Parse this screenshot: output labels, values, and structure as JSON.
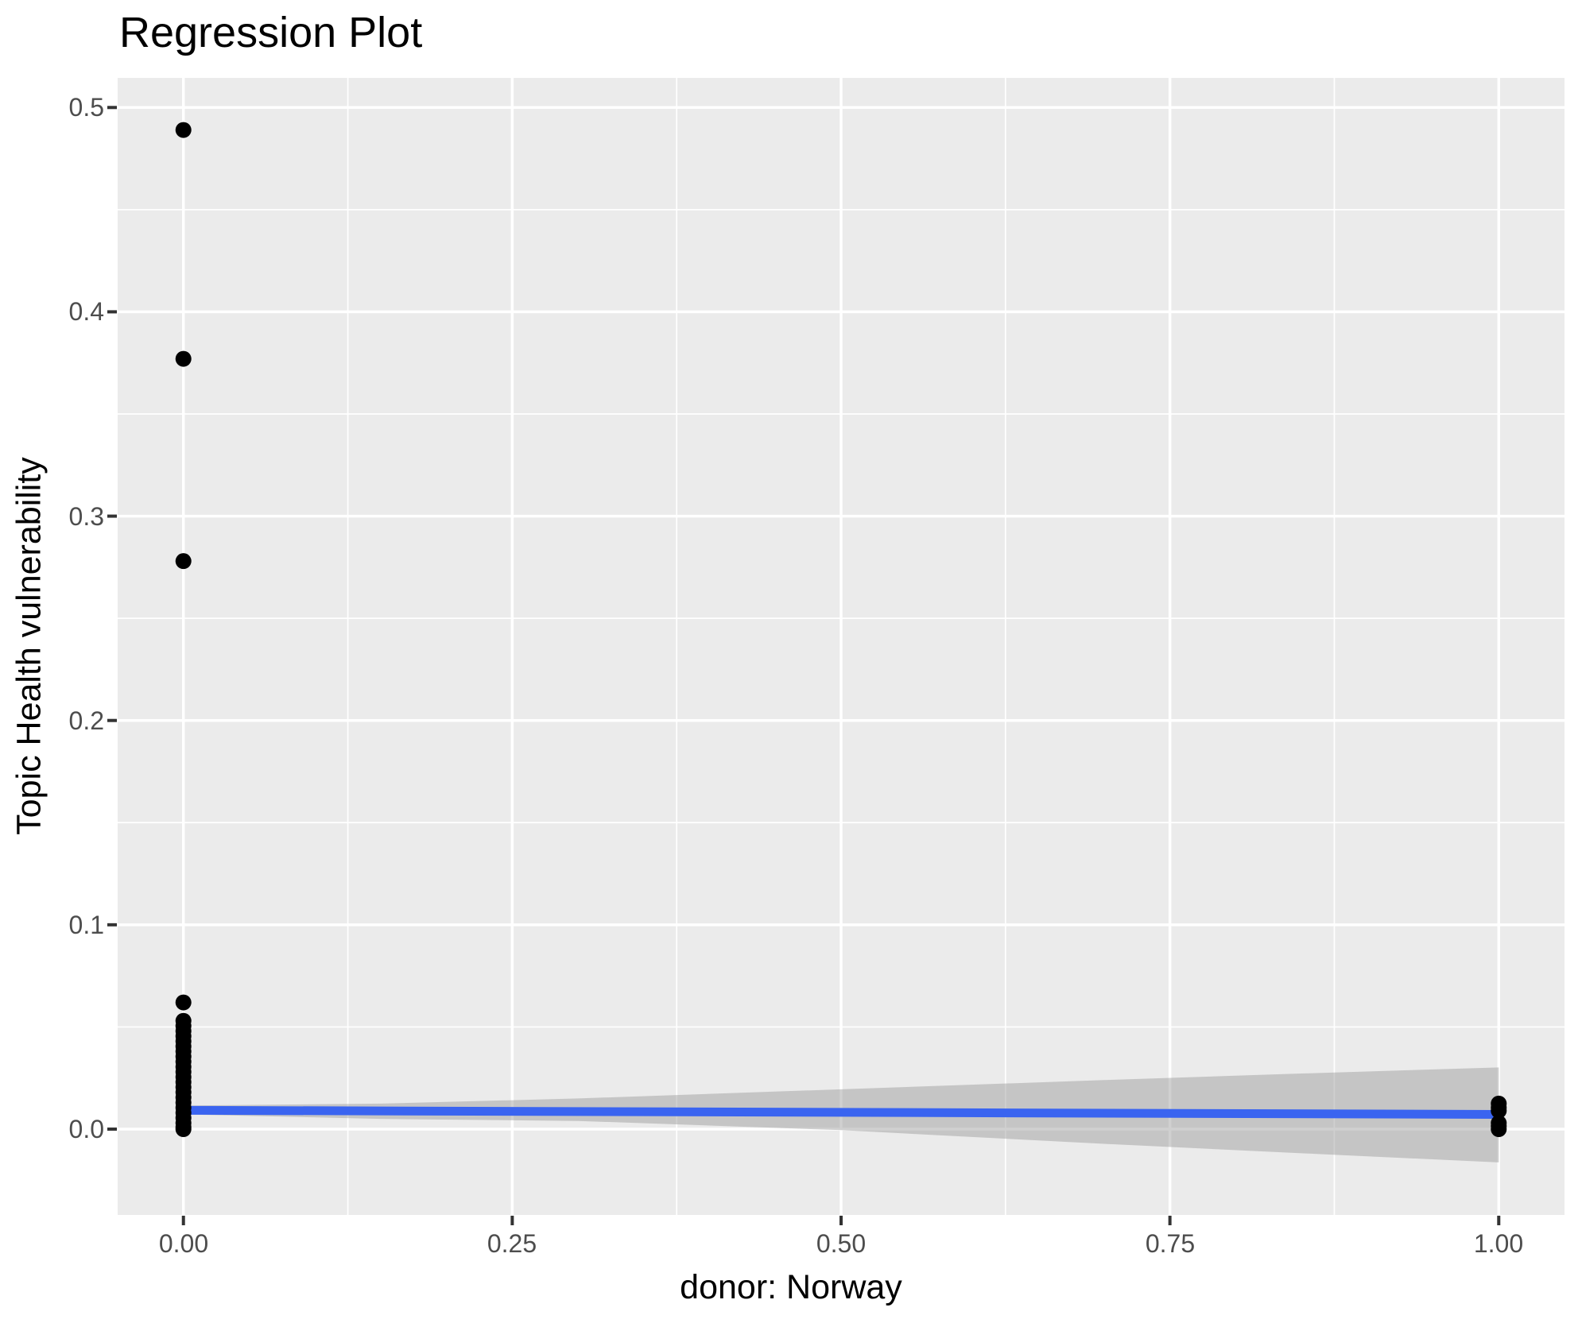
{
  "title": "Regression Plot",
  "chart_data": {
    "type": "scatter",
    "title": "Regression Plot",
    "xlabel": "donor: Norway",
    "ylabel": "Topic Health vulnerability",
    "xlim": [
      -0.05,
      1.05
    ],
    "ylim": [
      -0.042,
      0.5145
    ],
    "grid": true,
    "legend": false,
    "x_ticks": {
      "values": [
        0,
        0.25,
        0.5,
        0.75,
        1.0
      ],
      "labels": [
        "0.00",
        "0.25",
        "0.50",
        "0.75",
        "1.00"
      ]
    },
    "x_minor": [
      0.125,
      0.375,
      0.625,
      0.875
    ],
    "y_ticks": {
      "values": [
        0,
        0.1,
        0.2,
        0.3,
        0.4,
        0.5
      ],
      "labels": [
        "0.0",
        "0.1",
        "0.2",
        "0.3",
        "0.4",
        "0.5"
      ]
    },
    "y_minor": [
      0.05,
      0.15,
      0.25,
      0.35,
      0.45
    ],
    "points": {
      "x0_outliers": [
        0.489,
        0.377,
        0.278
      ],
      "x0_cluster": [
        0.062,
        0.053,
        0.0505,
        0.048,
        0.0455,
        0.043,
        0.0405,
        0.038,
        0.0355,
        0.033,
        0.0305,
        0.028,
        0.0255,
        0.023,
        0.0205,
        0.018,
        0.0155,
        0.013,
        0.0105,
        0.008,
        0.0055,
        0.003,
        0.001,
        0.0
      ],
      "x1_cluster": [
        0.0125,
        0.0105,
        0.009,
        0.003,
        0.0015,
        0.0
      ]
    },
    "regression_line": {
      "x": [
        0,
        1
      ],
      "y": [
        0.0092,
        0.0072
      ]
    },
    "confidence_band": [
      [
        0.0,
        0.0115
      ],
      [
        0.15,
        0.0125
      ],
      [
        0.3,
        0.015
      ],
      [
        0.5,
        0.0195
      ],
      [
        0.7,
        0.024
      ],
      [
        0.85,
        0.0272
      ],
      [
        1.0,
        0.0302
      ],
      [
        1.0,
        -0.0163
      ],
      [
        0.85,
        -0.0118
      ],
      [
        0.7,
        -0.0072
      ],
      [
        0.5,
        -0.0005
      ],
      [
        0.3,
        0.004
      ],
      [
        0.15,
        0.005
      ],
      [
        0.0,
        0.0072
      ]
    ],
    "colors": {
      "panel_background": "#EBEBEB",
      "gridline": "#FFFFFF",
      "point": "#000000",
      "regression_line": "#3A64F0",
      "confidence_band": "rgba(150,150,150,0.45)",
      "tick_mark": "#333333",
      "tick_label": "#4D4D4D",
      "title_text": "#000000"
    }
  }
}
